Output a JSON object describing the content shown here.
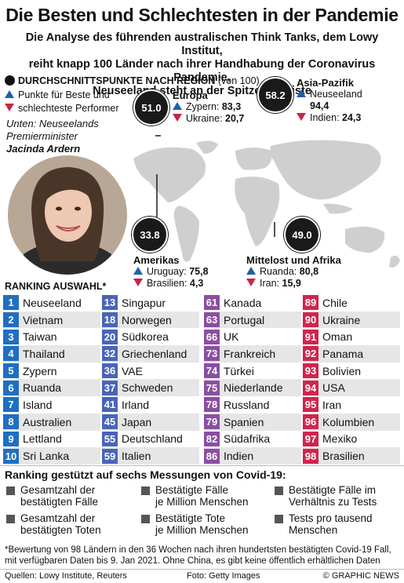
{
  "title": "Die Besten und Schlechtesten in der Pandemie",
  "subtitle": [
    "Die Analyse des führenden australischen Think Tanks, dem Lowy Institut,",
    "reiht knapp 100 Länder nach ihrer Handhabung der Coronavirus Pandemie,",
    "Neuseeland steht an der Spitze der Liste"
  ],
  "legend": {
    "heading": "DURCHSCHNITTSPUNKTE NACH REGION",
    "unit": "(von 100)",
    "best": "Punkte für Beste und",
    "worst": "schlechteste Performer"
  },
  "photo_caption": {
    "line1": "Unten: Neuseelands",
    "line2": "Premierminister",
    "name": "Jacinda Ardern"
  },
  "regions": [
    {
      "name": "Europa",
      "score": "51.0",
      "best": "Zypern",
      "best_val": "83,3",
      "worst": "Ukraine",
      "worst_val": "20,7"
    },
    {
      "name": "Asia-Pazifik",
      "score": "58.2",
      "best": "Neuseeland",
      "best_val": "94,4",
      "worst": "Indien",
      "worst_val": "24,3"
    },
    {
      "name": "Amerikas",
      "score": "33.8",
      "best": "Uruguay",
      "best_val": "75,8",
      "worst": "Brasilien",
      "worst_val": "4,3"
    },
    {
      "name": "Mittelost und Afrika",
      "score": "49.0",
      "best": "Ruanda",
      "best_val": "80,8",
      "worst": "Iran",
      "worst_val": "15,9"
    }
  ],
  "ranking_title": "RANKING AUSWAHL*",
  "ranking": [
    [
      {
        "n": "1",
        "c": "Neuseeland"
      },
      {
        "n": "2",
        "c": "Vietnam"
      },
      {
        "n": "3",
        "c": "Taiwan"
      },
      {
        "n": "4",
        "c": "Thailand"
      },
      {
        "n": "5",
        "c": "Zypern"
      },
      {
        "n": "6",
        "c": "Ruanda"
      },
      {
        "n": "7",
        "c": "Island"
      },
      {
        "n": "8",
        "c": "Australien"
      },
      {
        "n": "9",
        "c": "Lettland"
      },
      {
        "n": "10",
        "c": "Sri Lanka"
      }
    ],
    [
      {
        "n": "13",
        "c": "Singapur"
      },
      {
        "n": "18",
        "c": "Norwegen"
      },
      {
        "n": "20",
        "c": "Südkorea"
      },
      {
        "n": "32",
        "c": "Griechenland"
      },
      {
        "n": "36",
        "c": "VAE"
      },
      {
        "n": "37",
        "c": "Schweden"
      },
      {
        "n": "41",
        "c": "Irland"
      },
      {
        "n": "45",
        "c": "Japan"
      },
      {
        "n": "55",
        "c": "Deutschland"
      },
      {
        "n": "59",
        "c": "Italien"
      }
    ],
    [
      {
        "n": "61",
        "c": "Kanada"
      },
      {
        "n": "63",
        "c": "Portugal"
      },
      {
        "n": "66",
        "c": "UK"
      },
      {
        "n": "73",
        "c": "Frankreich"
      },
      {
        "n": "74",
        "c": "Türkei"
      },
      {
        "n": "75",
        "c": "Niederlande"
      },
      {
        "n": "78",
        "c": "Russland"
      },
      {
        "n": "79",
        "c": "Spanien"
      },
      {
        "n": "82",
        "c": "Südafrika"
      },
      {
        "n": "86",
        "c": "Indien"
      }
    ],
    [
      {
        "n": "89",
        "c": "Chile"
      },
      {
        "n": "90",
        "c": "Ukraine"
      },
      {
        "n": "91",
        "c": "Oman"
      },
      {
        "n": "92",
        "c": "Panama"
      },
      {
        "n": "93",
        "c": "Bolivien"
      },
      {
        "n": "94",
        "c": "USA"
      },
      {
        "n": "95",
        "c": "Iran"
      },
      {
        "n": "96",
        "c": "Kolumbien"
      },
      {
        "n": "97",
        "c": "Mexiko"
      },
      {
        "n": "98",
        "c": "Brasilien"
      }
    ]
  ],
  "rank_colors": [
    "#1f6fc2",
    "#4b64b8",
    "#8b4ea3",
    "#d1244f"
  ],
  "measures_title": "Ranking gestützt auf sechs Messungen von Covid-19:",
  "measures": [
    [
      "Gesamtzahl der",
      "bestätigten Fälle"
    ],
    [
      "Bestätigte Fälle",
      "je Million Menschen"
    ],
    [
      "Bestätigte Fälle im",
      "Verhältnis zu Tests"
    ],
    [
      "Gesamtzahl der",
      "bestätigten Toten"
    ],
    [
      "Bestätigte Tote",
      "je Million Menschen"
    ],
    [
      "Tests pro tausend",
      "Menschen"
    ]
  ],
  "footnote": [
    "*Bewertung von 98 Ländern in den 36 Wochen nach ihren hundertsten bestätigten Covid-19 Fall,",
    "mit verfügbaren Daten bis 9. Jan 2021. Ohne China, es gibt keine öffentlich erhältlichen Daten"
  ],
  "footer": {
    "sources": "Quellen: Lowy Institute, Reuters",
    "photo": "Foto: Getty Images",
    "copyright": "© GRAPHIC NEWS"
  }
}
